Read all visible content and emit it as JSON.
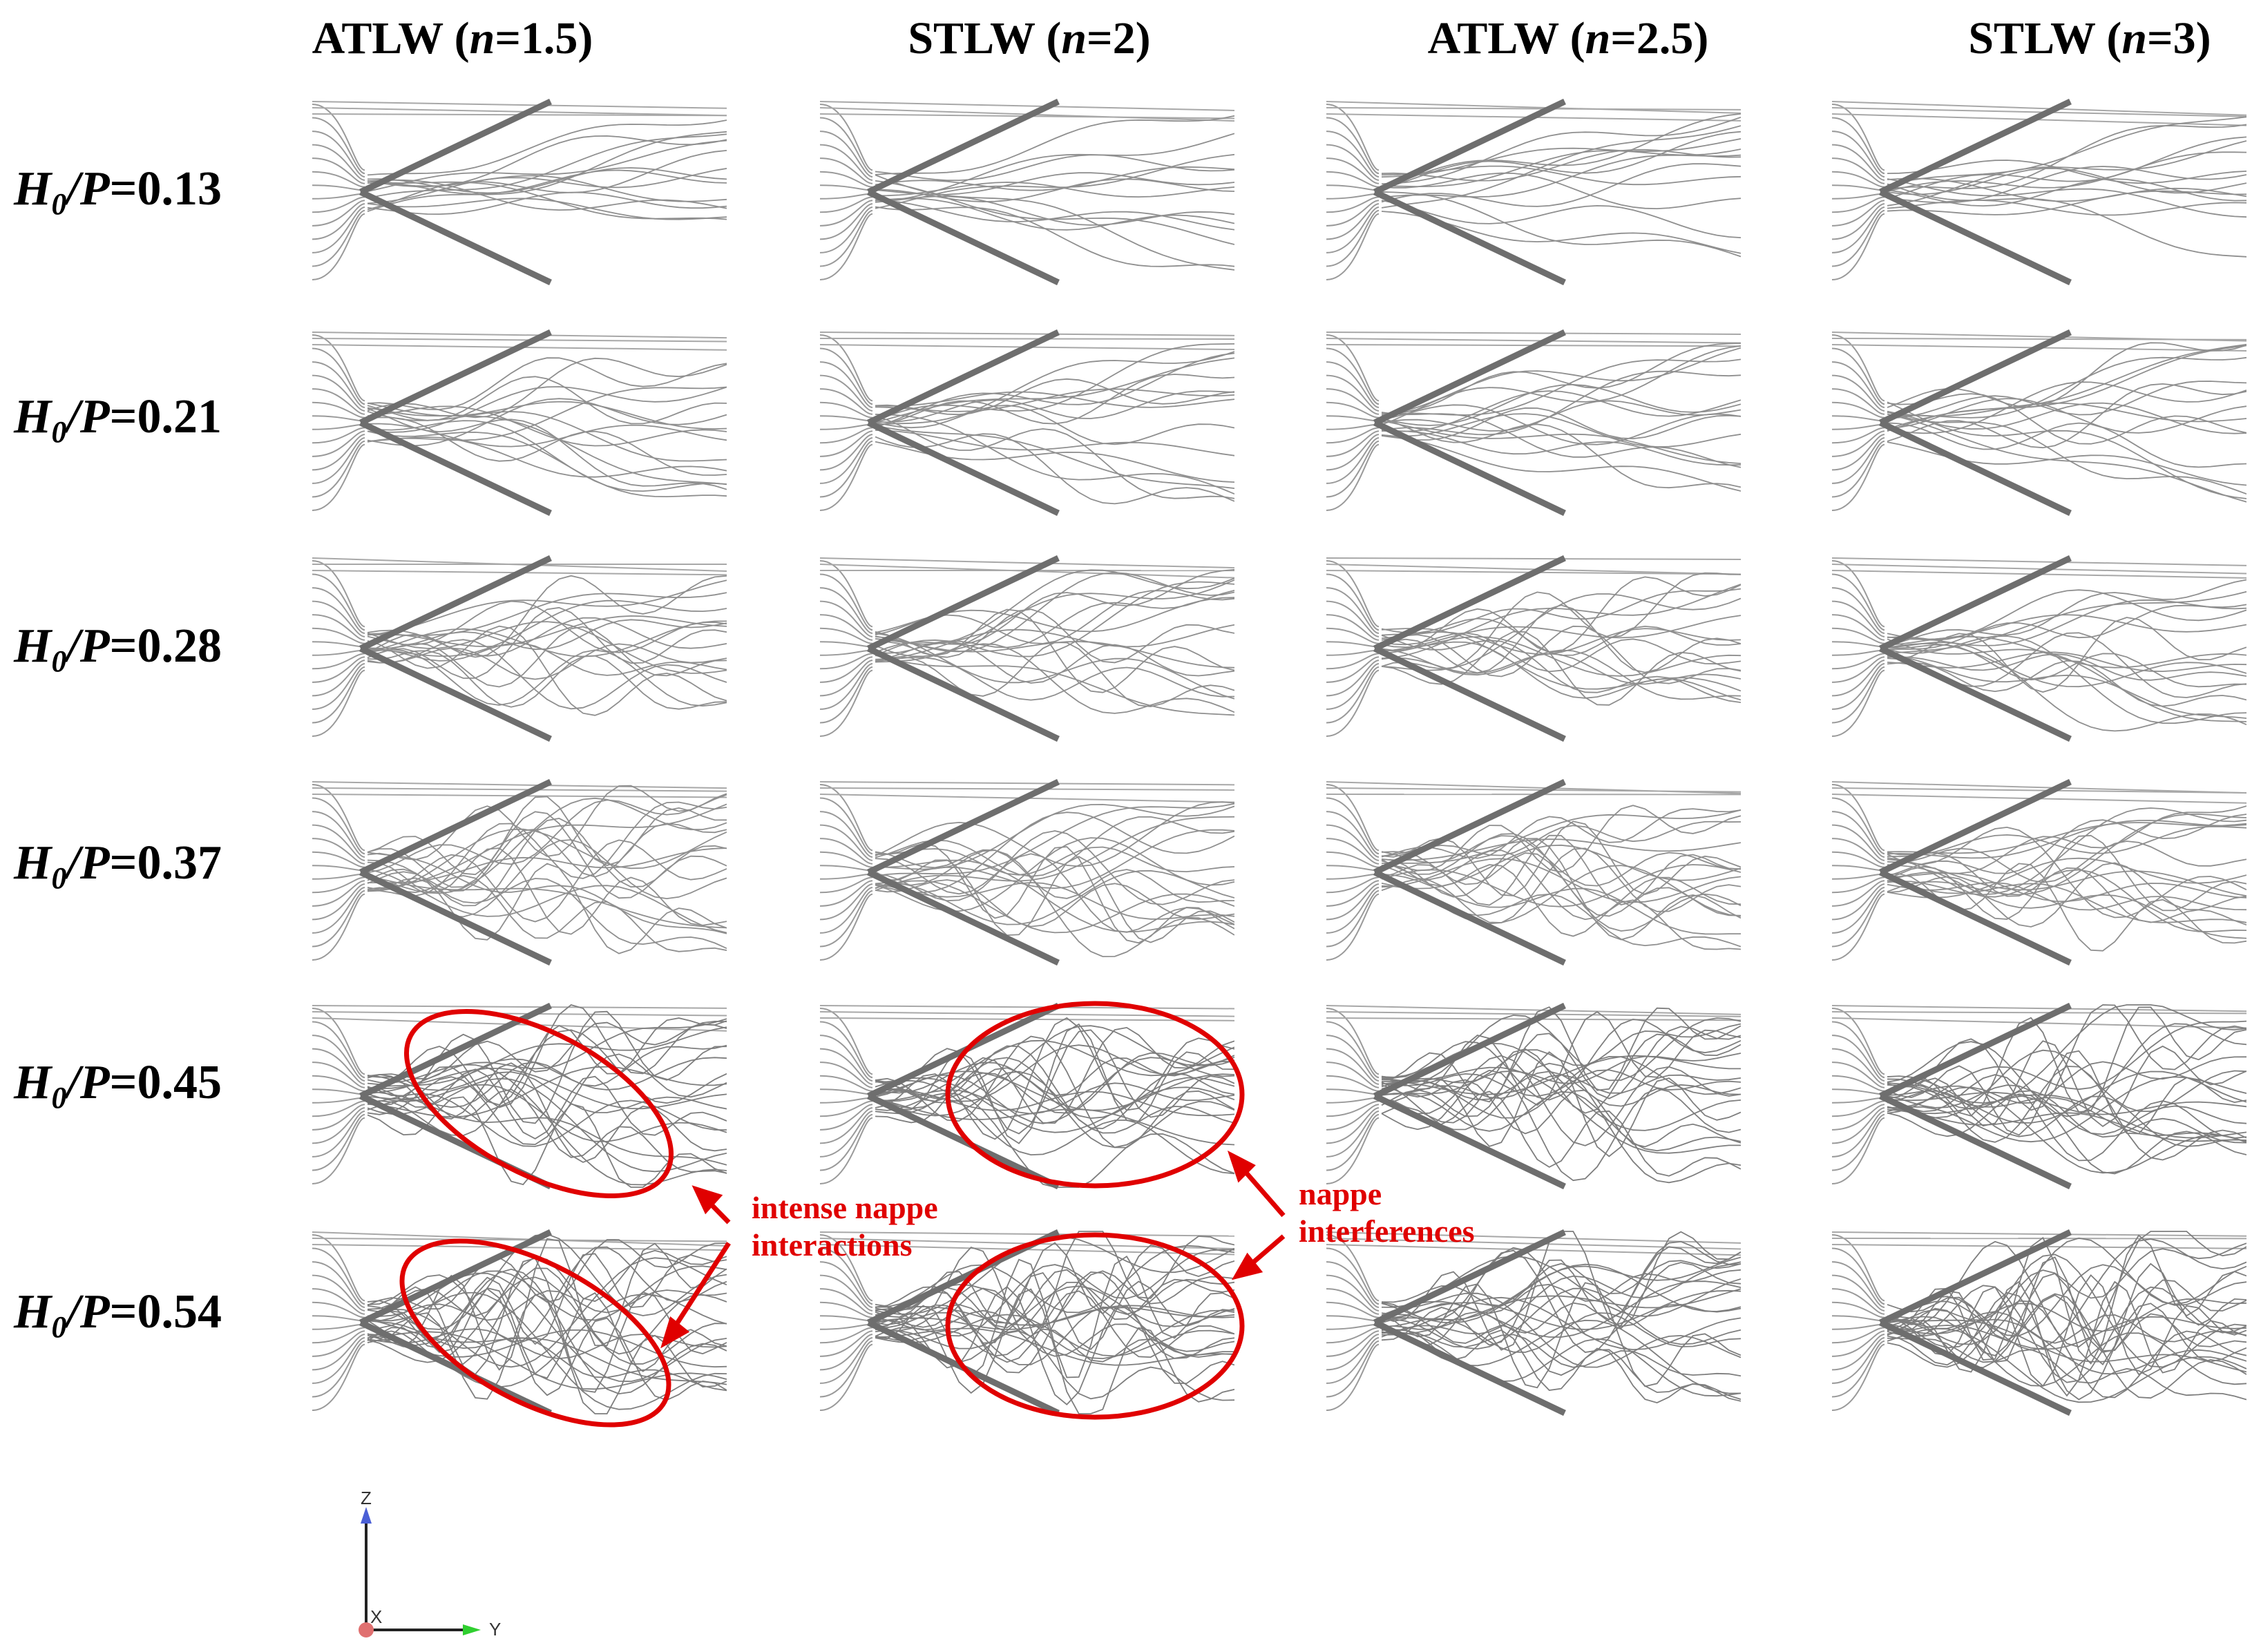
{
  "columns": [
    {
      "prefix": "ATLW (",
      "n_symbol": "n",
      "rest": "=1.5)"
    },
    {
      "prefix": "STLW (",
      "n_symbol": "n",
      "rest": "=2)"
    },
    {
      "prefix": "ATLW (",
      "n_symbol": "n",
      "rest": "=2.5)"
    },
    {
      "prefix": "STLW (",
      "n_symbol": "n",
      "rest": "=3)"
    }
  ],
  "rows": [
    {
      "h": "H",
      "sub": "0",
      "p": "/P",
      "value": "=0.13"
    },
    {
      "h": "H",
      "sub": "0",
      "p": "/P",
      "value": "=0.21"
    },
    {
      "h": "H",
      "sub": "0",
      "p": "/P",
      "value": "=0.28"
    },
    {
      "h": "H",
      "sub": "0",
      "p": "/P",
      "value": "=0.37"
    },
    {
      "h": "H",
      "sub": "0",
      "p": "/P",
      "value": "=0.45"
    },
    {
      "h": "H",
      "sub": "0",
      "p": "/P",
      "value": "=0.54"
    }
  ],
  "annotations": {
    "left": "intense nappe\ninteractions",
    "right": "nappe\ninterferences"
  },
  "axes_triad": {
    "z": "Z",
    "x": "X",
    "y": "Y"
  },
  "colors": {
    "annotation": "#e00000",
    "streamline": "#8a8a8a",
    "weir_wall": "#6e6e6e",
    "axis_z": "#4a5fd6",
    "axis_y": "#2fcf2f",
    "axis_origin": "#e07070"
  },
  "icons": {
    "coordinate_triad": "xyz-axes-icon"
  }
}
